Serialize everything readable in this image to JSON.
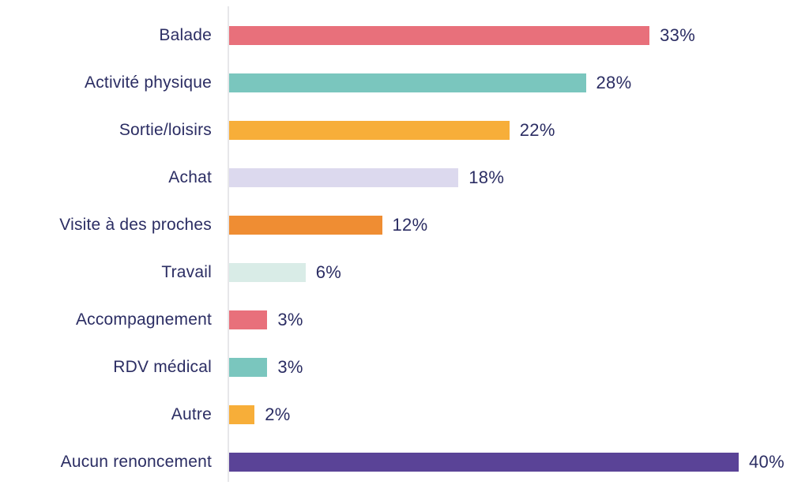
{
  "chart_data": {
    "type": "bar",
    "orientation": "horizontal",
    "title": "",
    "xlabel": "",
    "ylabel": "",
    "value_suffix": "%",
    "xlim": [
      0,
      40
    ],
    "grid": false,
    "legend": false,
    "categories": [
      "Balade",
      "Activité physique",
      "Sortie/loisirs",
      "Achat",
      "Visite à des proches",
      "Travail",
      "Accompagnement",
      "RDV médical",
      "Autre",
      "Aucun renoncement"
    ],
    "values": [
      33,
      28,
      22,
      18,
      12,
      6,
      3,
      3,
      2,
      40
    ],
    "value_labels": [
      "33%",
      "28%",
      "22%",
      "18%",
      "12%",
      "6%",
      "3%",
      "3%",
      "2%",
      "40%"
    ],
    "colors": [
      "#e8707b",
      "#7ac6be",
      "#f7ae39",
      "#dcd9ee",
      "#ef8d33",
      "#d9ece7",
      "#e8707b",
      "#7ac6be",
      "#f7ae39",
      "#5a4397"
    ],
    "text_color": "#2b2d63",
    "axis_line_color": "#e7e7ea"
  }
}
